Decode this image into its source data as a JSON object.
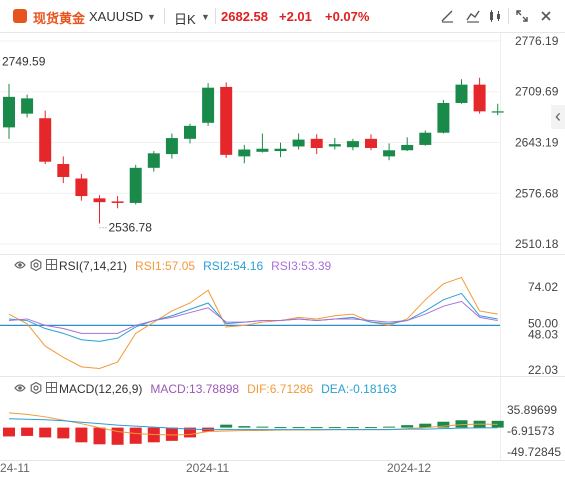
{
  "header": {
    "title": "现货黄金",
    "symbol": "XAUUSD",
    "symbol_caret": "▼",
    "period": "日K",
    "period_caret": "▼",
    "price": "2682.58",
    "change": "+2.01",
    "change_pct": "+0.07%",
    "tools": [
      "draw-line-icon",
      "indicator-icon",
      "compare-icon",
      "fullscreen-icon",
      "close-icon"
    ]
  },
  "colors": {
    "up": "#1a8a4a",
    "down": "#e5262b",
    "title": "#e8541d",
    "rsi1": "#f29a38",
    "rsi2": "#2a9fd6",
    "rsi3": "#a970d9",
    "macd_purple": "#9b59b6",
    "dif": "#f29a38",
    "dea": "#2a9fd6"
  },
  "rsi_header": {
    "name": "RSI(7,14,21)",
    "rsi1": "RSI1:57.05",
    "rsi2": "RSI2:54.16",
    "rsi3": "RSI3:53.39"
  },
  "macd_header": {
    "name": "MACD(12,26,9)",
    "macd": "MACD:13.78898",
    "dif": "DIF:6.71286",
    "dea": "DEA:-0.18163"
  },
  "collapse_arrow": "‹",
  "chart_data": [
    {
      "type": "candlestick",
      "y_ticks": [
        "2776.19",
        "2709.69",
        "2643.19",
        "2576.68",
        "2510.18"
      ],
      "ylim": [
        2510.18,
        2776.19
      ],
      "annotations": {
        "high": "2749.59",
        "low": "2536.78"
      },
      "x_ticks": [
        "24-11",
        "2024-11",
        "2024-12"
      ],
      "candles": [
        {
          "o": 2663,
          "h": 2720,
          "l": 2648,
          "c": 2703
        },
        {
          "o": 2681,
          "h": 2706,
          "l": 2676,
          "c": 2701
        },
        {
          "o": 2675,
          "h": 2685,
          "l": 2615,
          "c": 2618
        },
        {
          "o": 2615,
          "h": 2625,
          "l": 2590,
          "c": 2598
        },
        {
          "o": 2596,
          "h": 2602,
          "l": 2567,
          "c": 2573
        },
        {
          "o": 2570,
          "h": 2574,
          "l": 2537,
          "c": 2565
        },
        {
          "o": 2566,
          "h": 2573,
          "l": 2557,
          "c": 2564
        },
        {
          "o": 2564,
          "h": 2614,
          "l": 2562,
          "c": 2610
        },
        {
          "o": 2610,
          "h": 2632,
          "l": 2605,
          "c": 2629
        },
        {
          "o": 2628,
          "h": 2655,
          "l": 2622,
          "c": 2649
        },
        {
          "o": 2648,
          "h": 2668,
          "l": 2642,
          "c": 2665
        },
        {
          "o": 2669,
          "h": 2721,
          "l": 2665,
          "c": 2715
        },
        {
          "o": 2716,
          "h": 2722,
          "l": 2623,
          "c": 2627
        },
        {
          "o": 2625,
          "h": 2640,
          "l": 2616,
          "c": 2634
        },
        {
          "o": 2631,
          "h": 2655,
          "l": 2630,
          "c": 2635
        },
        {
          "o": 2632,
          "h": 2643,
          "l": 2624,
          "c": 2635
        },
        {
          "o": 2638,
          "h": 2655,
          "l": 2634,
          "c": 2647
        },
        {
          "o": 2648,
          "h": 2654,
          "l": 2628,
          "c": 2636
        },
        {
          "o": 2638,
          "h": 2649,
          "l": 2634,
          "c": 2641
        },
        {
          "o": 2637,
          "h": 2648,
          "l": 2633,
          "c": 2645
        },
        {
          "o": 2648,
          "h": 2654,
          "l": 2633,
          "c": 2636
        },
        {
          "o": 2625,
          "h": 2642,
          "l": 2620,
          "c": 2633
        },
        {
          "o": 2633,
          "h": 2650,
          "l": 2632,
          "c": 2640
        },
        {
          "o": 2640,
          "h": 2659,
          "l": 2639,
          "c": 2656
        },
        {
          "o": 2656,
          "h": 2699,
          "l": 2655,
          "c": 2695
        },
        {
          "o": 2695,
          "h": 2726,
          "l": 2694,
          "c": 2719
        },
        {
          "o": 2719,
          "h": 2728,
          "l": 2681,
          "c": 2684
        },
        {
          "o": 2683,
          "h": 2694,
          "l": 2679,
          "c": 2684
        }
      ]
    },
    {
      "type": "line",
      "title": "RSI(7,14,21)",
      "y_ticks": [
        "74.02",
        "50.00",
        "48.03",
        "22.03"
      ],
      "ylim": [
        22.03,
        74.02
      ],
      "series": [
        {
          "name": "RSI1",
          "values": [
            57,
            51,
            37,
            30,
            24,
            23,
            27,
            45,
            52,
            59,
            64,
            72,
            49,
            50,
            52,
            53,
            55,
            54,
            56,
            57,
            52,
            50,
            54,
            66,
            76,
            80,
            59,
            57
          ]
        },
        {
          "name": "RSI2",
          "values": [
            54,
            53,
            48,
            45,
            41,
            40,
            42,
            49,
            53,
            56,
            60,
            64,
            51,
            52,
            53,
            53,
            54,
            53,
            54,
            55,
            52,
            51,
            53,
            59,
            66,
            70,
            56,
            54
          ]
        },
        {
          "name": "RSI3",
          "values": [
            53,
            54,
            50,
            48,
            45,
            45,
            45,
            50,
            53,
            55,
            58,
            61,
            52,
            52,
            53,
            53,
            54,
            53,
            54,
            54,
            53,
            52,
            53,
            57,
            62,
            65,
            55,
            53
          ]
        }
      ],
      "reference_line": 50.0
    },
    {
      "type": "bar+line",
      "title": "MACD(12,26,9)",
      "y_ticks": [
        "35.89699",
        "-6.91573",
        "-49.72845"
      ],
      "ylim": [
        -49.72845,
        35.89699
      ],
      "macd_hist": [
        -18,
        -17,
        -20,
        -22,
        -30,
        -34,
        -35,
        -33,
        -30,
        -27,
        -20,
        -8,
        6,
        3,
        2,
        1,
        1,
        1,
        1,
        1,
        1,
        2,
        5,
        8,
        12,
        15,
        14,
        13.79
      ],
      "dif": [
        30,
        27,
        22,
        15,
        8,
        0,
        -8,
        -12,
        -14,
        -15,
        -14,
        -8,
        -7,
        -6,
        -6,
        -5,
        -5,
        -5,
        -4,
        -4,
        -4,
        -4,
        -2,
        0,
        3,
        6,
        7,
        6.71
      ],
      "dea": [
        18,
        17,
        16,
        14,
        11,
        8,
        5,
        3,
        1,
        -1,
        -3,
        -4,
        -4,
        -4,
        -4,
        -4,
        -4,
        -4,
        -4,
        -4,
        -4,
        -4,
        -3,
        -3,
        -2,
        -1,
        -0.5,
        -0.18
      ]
    }
  ]
}
